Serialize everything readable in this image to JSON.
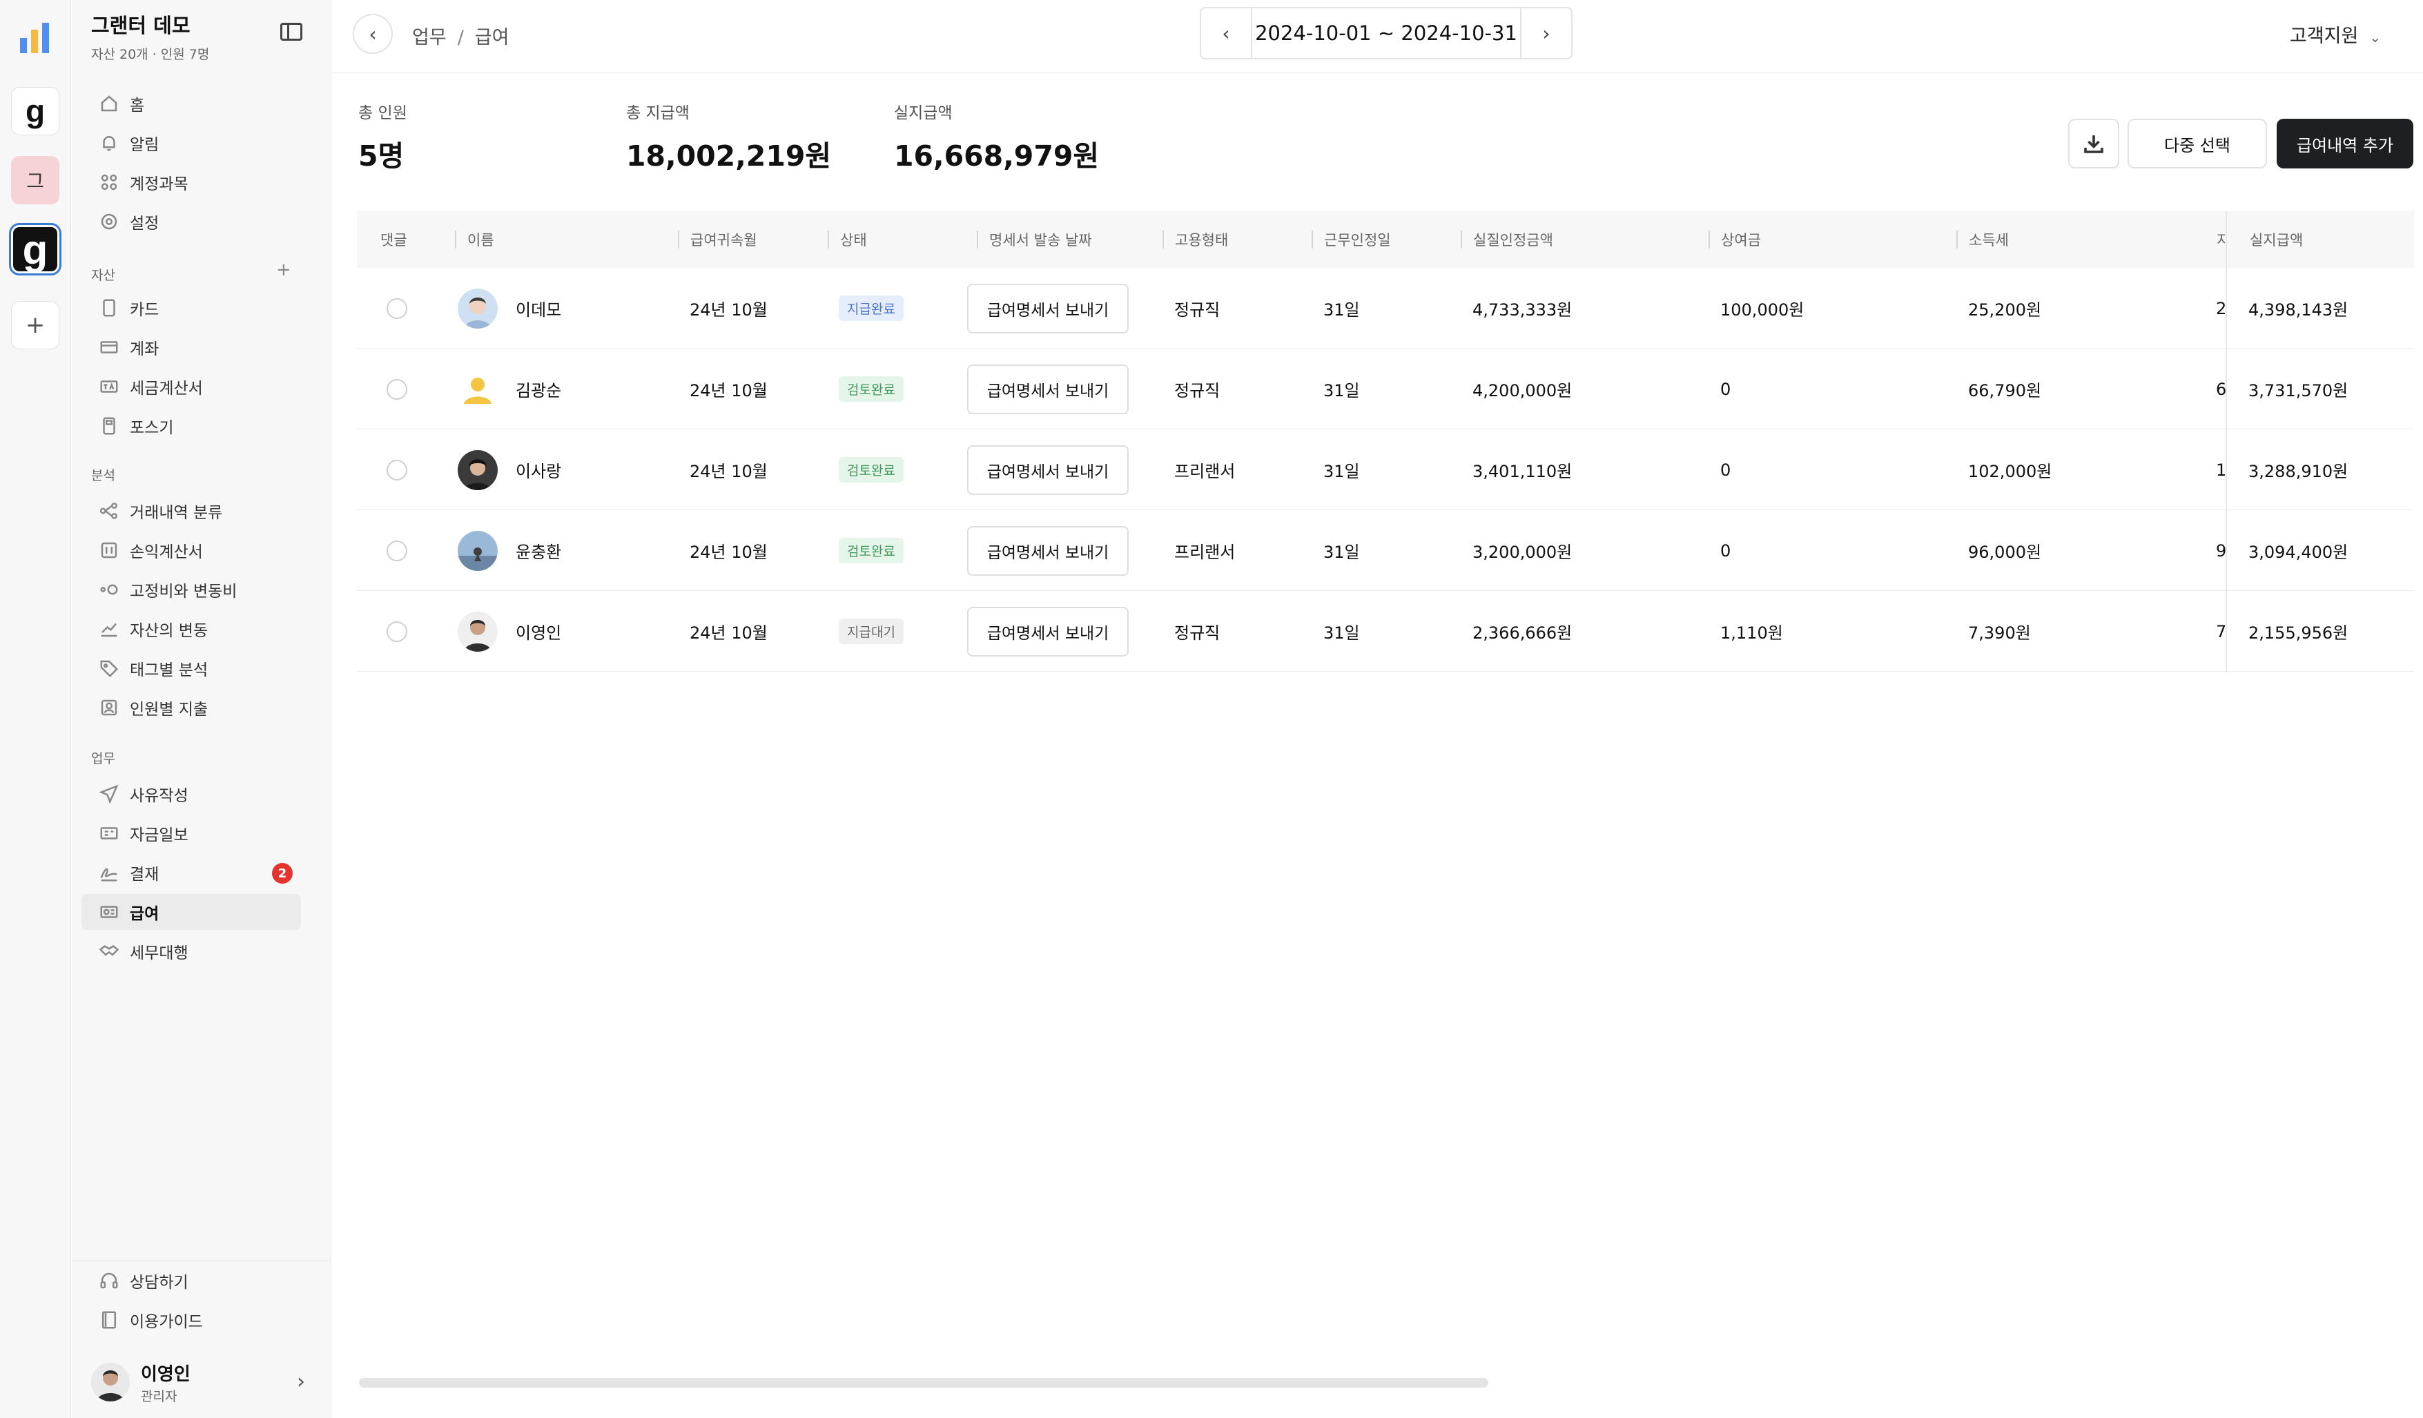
{
  "rail": {
    "workspaces": [
      {
        "icon": "chart-logo-icon"
      },
      {
        "letter": "g"
      },
      {
        "letter": "그"
      },
      {
        "letter": "g"
      }
    ],
    "add_label": "+"
  },
  "sidebar": {
    "title": "그랜터 데모",
    "subtitle": "자산 20개 · 인원 7명",
    "top_items": [
      {
        "label": "홈",
        "icon": "home-icon"
      },
      {
        "label": "알림",
        "icon": "bell-icon"
      },
      {
        "label": "계정과목",
        "icon": "grid-icon"
      },
      {
        "label": "설정",
        "icon": "gear-icon"
      }
    ],
    "assets_label": "자산",
    "assets_items": [
      {
        "label": "카드",
        "icon": "card-icon"
      },
      {
        "label": "계좌",
        "icon": "bank-icon"
      },
      {
        "label": "세금계산서",
        "icon": "tax-icon"
      },
      {
        "label": "포스기",
        "icon": "pos-icon"
      }
    ],
    "analysis_label": "분석",
    "analysis_items": [
      {
        "label": "거래내역 분류",
        "icon": "classify-icon"
      },
      {
        "label": "손익계산서",
        "icon": "pnl-icon"
      },
      {
        "label": "고정비와 변동비",
        "icon": "cost-icon"
      },
      {
        "label": "자산의 변동",
        "icon": "trend-icon"
      },
      {
        "label": "태그별 분석",
        "icon": "tag-icon"
      },
      {
        "label": "인원별 지출",
        "icon": "person-icon"
      }
    ],
    "work_label": "업무",
    "work_items": [
      {
        "label": "사유작성",
        "icon": "send-icon"
      },
      {
        "label": "자금일보",
        "icon": "report-icon"
      },
      {
        "label": "결재",
        "icon": "sign-icon",
        "badge": "2"
      },
      {
        "label": "급여",
        "icon": "payroll-icon",
        "active": true
      },
      {
        "label": "세무대행",
        "icon": "handshake-icon"
      }
    ],
    "bottom_items": [
      {
        "label": "상담하기",
        "icon": "headset-icon"
      },
      {
        "label": "이용가이드",
        "icon": "book-icon"
      }
    ],
    "user": {
      "name": "이영인",
      "role": "관리자"
    }
  },
  "topbar": {
    "breadcrumb": [
      "업무",
      "급여"
    ],
    "date_range": "2024-10-01 ~ 2024-10-31",
    "support_label": "고객지원"
  },
  "stats": [
    {
      "label": "총 인원",
      "value": "5명"
    },
    {
      "label": "총 지급액",
      "value": "18,002,219원"
    },
    {
      "label": "실지급액",
      "value": "16,668,979원"
    }
  ],
  "actions": {
    "multi_select": "다중 선택",
    "add_payroll": "급여내역 추가"
  },
  "table": {
    "columns": [
      "댓글",
      "이름",
      "급여귀속월",
      "상태",
      "명세서 발송 날짜",
      "고용형태",
      "근무인정일",
      "실질인정금액",
      "상여금",
      "소득세",
      "지",
      "실지급액"
    ],
    "send_label": "급여명세서 보내기",
    "rows": [
      {
        "name": "이데모",
        "month": "24년 10월",
        "status": "지급완료",
        "status_type": "done",
        "employment": "정규직",
        "days": "31일",
        "recognized": "4,733,333원",
        "bonus": "100,000원",
        "income_tax": "25,200원",
        "local_tax_partial": "2",
        "net": "4,398,143원"
      },
      {
        "name": "김광순",
        "month": "24년 10월",
        "status": "검토완료",
        "status_type": "review",
        "employment": "정규직",
        "days": "31일",
        "recognized": "4,200,000원",
        "bonus": "0",
        "income_tax": "66,790원",
        "local_tax_partial": "6",
        "net": "3,731,570원"
      },
      {
        "name": "이사랑",
        "month": "24년 10월",
        "status": "검토완료",
        "status_type": "review",
        "employment": "프리랜서",
        "days": "31일",
        "recognized": "3,401,110원",
        "bonus": "0",
        "income_tax": "102,000원",
        "local_tax_partial": "1",
        "net": "3,288,910원"
      },
      {
        "name": "윤충환",
        "month": "24년 10월",
        "status": "검토완료",
        "status_type": "review",
        "employment": "프리랜서",
        "days": "31일",
        "recognized": "3,200,000원",
        "bonus": "0",
        "income_tax": "96,000원",
        "local_tax_partial": "9",
        "net": "3,094,400원"
      },
      {
        "name": "이영인",
        "month": "24년 10월",
        "status": "지급대기",
        "status_type": "wait",
        "employment": "정규직",
        "days": "31일",
        "recognized": "2,366,666원",
        "bonus": "1,110원",
        "income_tax": "7,390원",
        "local_tax_partial": "7",
        "net": "2,155,956원"
      }
    ]
  },
  "colors": {
    "primary_button": "#1e1f22",
    "badge": "#e3342f",
    "status_done": "#4a74c9",
    "status_review": "#3c9a5a"
  }
}
